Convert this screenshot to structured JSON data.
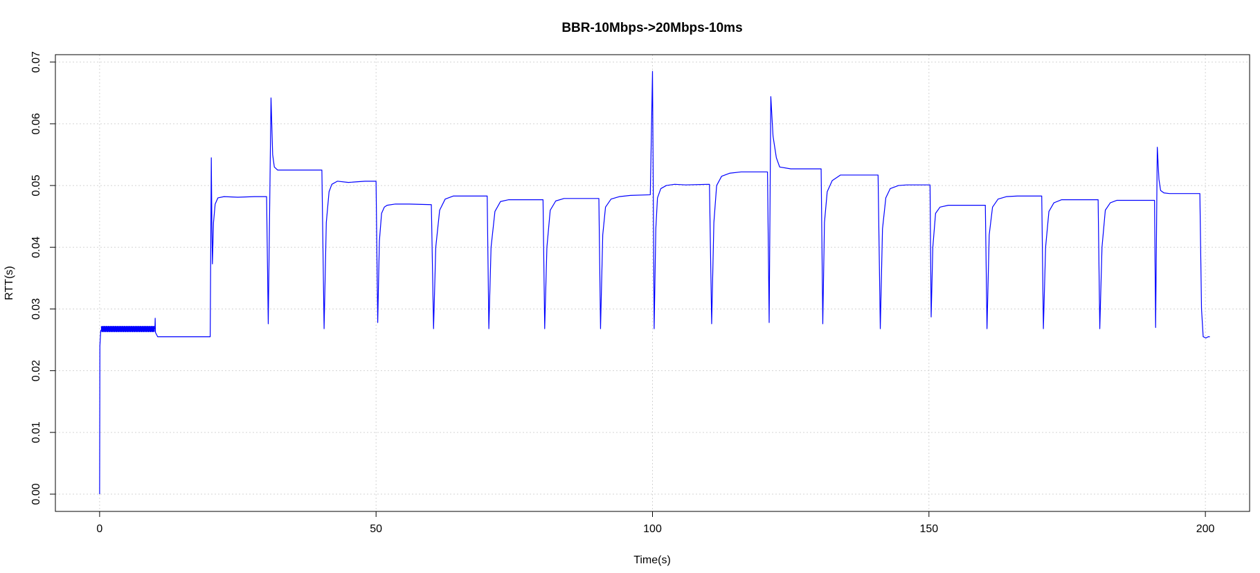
{
  "chart_data": {
    "type": "line",
    "title": "BBR-10Mbps->20Mbps-10ms",
    "xlabel": "Time(s)",
    "ylabel": "RTT(s)",
    "xlim": [
      -8,
      208
    ],
    "ylim": [
      -0.0028,
      0.0712
    ],
    "xticks": [
      0,
      50,
      100,
      150,
      200
    ],
    "yticks": [
      0.0,
      0.01,
      0.02,
      0.03,
      0.04,
      0.05,
      0.06,
      0.07
    ],
    "xtick_labels": [
      "0",
      "50",
      "100",
      "150",
      "200"
    ],
    "ytick_labels": [
      "0.00",
      "0.01",
      "0.02",
      "0.03",
      "0.04",
      "0.05",
      "0.06",
      "0.07"
    ],
    "grid": true,
    "series_color": "#0000ff",
    "series": [
      {
        "x": [
          0,
          0.05,
          0.2,
          0.5,
          1,
          2,
          3,
          4,
          5,
          6,
          7,
          8,
          9,
          10,
          10.05,
          10.1,
          10.5,
          15,
          19.9,
          20.0,
          20.2,
          20.3,
          20.4,
          20.6,
          20.9,
          21.4,
          22.5,
          25,
          28,
          30.2,
          30.5,
          31.0,
          31.3,
          31.6,
          32.2,
          33,
          36,
          40.2,
          40.6,
          41.0,
          41.5,
          42,
          43,
          45,
          48,
          50.0,
          50.3,
          50.6,
          51.0,
          51.5,
          52,
          53.5,
          56,
          60.0,
          60.4,
          60.8,
          61.5,
          62.5,
          64,
          66,
          70.1,
          70.4,
          70.8,
          71.5,
          72.5,
          74,
          76,
          80.2,
          80.5,
          80.9,
          81.5,
          82.5,
          84,
          86,
          90.3,
          90.6,
          91.0,
          91.5,
          92.5,
          94,
          96,
          99.6,
          100.0,
          100.3,
          100.6,
          100.9,
          101.5,
          102.5,
          104,
          106,
          110.3,
          110.7,
          111.1,
          111.6,
          112.5,
          114,
          116,
          120.8,
          121.1,
          121.4,
          121.8,
          122.4,
          123,
          125,
          130.5,
          130.8,
          131.1,
          131.6,
          132.5,
          134,
          136,
          140.8,
          141.2,
          141.6,
          142.2,
          143,
          144.5,
          146,
          150.2,
          150.4,
          150.7,
          151.2,
          152,
          153.5,
          156,
          160.2,
          160.5,
          160.9,
          161.5,
          162.5,
          164,
          166,
          170.4,
          170.7,
          171.1,
          171.7,
          172.6,
          174,
          176,
          180.6,
          180.9,
          181.3,
          181.9,
          182.8,
          184,
          186,
          190.8,
          191.0,
          191.3,
          191.6,
          191.9,
          192.5,
          193.5,
          195,
          199.0,
          199.3,
          199.6,
          200.1,
          200.5,
          200.8
        ],
        "y": [
          0.0,
          0.024,
          0.0265,
          0.0268,
          0.0268,
          0.0268,
          0.0268,
          0.0268,
          0.0268,
          0.0268,
          0.0268,
          0.0268,
          0.0268,
          0.0268,
          0.0285,
          0.0262,
          0.0255,
          0.0255,
          0.0255,
          0.0255,
          0.0545,
          0.044,
          0.0373,
          0.044,
          0.047,
          0.048,
          0.0482,
          0.0481,
          0.0482,
          0.0482,
          0.0276,
          0.0642,
          0.055,
          0.053,
          0.0525,
          0.0525,
          0.0525,
          0.0525,
          0.0268,
          0.044,
          0.049,
          0.0502,
          0.0507,
          0.0505,
          0.0507,
          0.0507,
          0.0278,
          0.041,
          0.0455,
          0.0465,
          0.0468,
          0.047,
          0.047,
          0.0469,
          0.0268,
          0.04,
          0.046,
          0.0478,
          0.0483,
          0.0483,
          0.0483,
          0.0268,
          0.04,
          0.0458,
          0.0474,
          0.0477,
          0.0477,
          0.0477,
          0.0268,
          0.04,
          0.046,
          0.0475,
          0.0479,
          0.0479,
          0.0479,
          0.0268,
          0.042,
          0.0465,
          0.0478,
          0.0482,
          0.0484,
          0.0485,
          0.0685,
          0.0268,
          0.043,
          0.048,
          0.0495,
          0.05,
          0.0502,
          0.0501,
          0.0502,
          0.0276,
          0.044,
          0.05,
          0.0515,
          0.052,
          0.0522,
          0.0522,
          0.0278,
          0.0644,
          0.058,
          0.0545,
          0.053,
          0.0527,
          0.0527,
          0.0276,
          0.044,
          0.049,
          0.0508,
          0.0517,
          0.0517,
          0.0517,
          0.0268,
          0.043,
          0.048,
          0.0495,
          0.05,
          0.0501,
          0.0501,
          0.0287,
          0.04,
          0.0455,
          0.0465,
          0.0468,
          0.0468,
          0.0468,
          0.0268,
          0.042,
          0.0465,
          0.0478,
          0.0482,
          0.0483,
          0.0483,
          0.0268,
          0.04,
          0.0458,
          0.0472,
          0.0477,
          0.0477,
          0.0477,
          0.0268,
          0.04,
          0.046,
          0.0472,
          0.0476,
          0.0476,
          0.0476,
          0.027,
          0.0562,
          0.051,
          0.0492,
          0.0488,
          0.0487,
          0.0487,
          0.0487,
          0.03,
          0.0255,
          0.0253,
          0.0255,
          0.0255
        ]
      }
    ]
  }
}
